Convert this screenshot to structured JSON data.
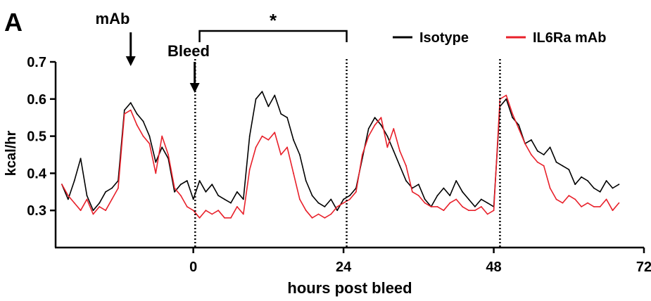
{
  "panel_label": "A",
  "chart_data": {
    "type": "line",
    "xlabel": "hours post bleed",
    "ylabel": "kcal/hr",
    "xlim": [
      -22,
      72
    ],
    "ylim": [
      0.2,
      0.7
    ],
    "x_ticks": [
      0,
      24,
      48,
      72
    ],
    "y_ticks": [
      0.3,
      0.4,
      0.5,
      0.6,
      0.7
    ],
    "grid": false,
    "legend_position": "top-right",
    "colors": {
      "Isotype": "#000000",
      "IL6Ra mAb": "#e8202a"
    },
    "annotations": {
      "mab_label": "mAb",
      "mab_arrow_x": -10,
      "bleed_label": "Bleed",
      "bleed_arrow_x": 0,
      "significance_label": "*",
      "significance_range": [
        1,
        24.5
      ],
      "dotted_vlines_x": [
        0.3,
        24.5,
        49
      ]
    },
    "x": [
      -21,
      -20,
      -19,
      -18,
      -17,
      -16,
      -15,
      -14,
      -13,
      -12,
      -11,
      -10,
      -9,
      -8,
      -7,
      -6,
      -5,
      -4,
      -3,
      -2,
      -1,
      0,
      1,
      2,
      3,
      4,
      5,
      6,
      7,
      8,
      9,
      10,
      11,
      12,
      13,
      14,
      15,
      16,
      17,
      18,
      19,
      20,
      21,
      22,
      23,
      24,
      25,
      26,
      27,
      28,
      29,
      30,
      31,
      32,
      33,
      34,
      35,
      36,
      37,
      38,
      39,
      40,
      41,
      42,
      43,
      44,
      45,
      46,
      47,
      48,
      49,
      50,
      51,
      52,
      53,
      54,
      55,
      56,
      57,
      58,
      59,
      60,
      61,
      62,
      63,
      64,
      65,
      66,
      67,
      68
    ],
    "series": [
      {
        "name": "Isotype",
        "values": [
          0.37,
          0.33,
          0.38,
          0.44,
          0.34,
          0.3,
          0.32,
          0.35,
          0.36,
          0.38,
          0.57,
          0.59,
          0.56,
          0.54,
          0.5,
          0.43,
          0.47,
          0.44,
          0.35,
          0.37,
          0.38,
          0.33,
          0.38,
          0.35,
          0.37,
          0.34,
          0.33,
          0.32,
          0.35,
          0.33,
          0.5,
          0.6,
          0.62,
          0.58,
          0.61,
          0.56,
          0.55,
          0.49,
          0.45,
          0.38,
          0.34,
          0.32,
          0.31,
          0.33,
          0.3,
          0.33,
          0.34,
          0.36,
          0.44,
          0.52,
          0.55,
          0.53,
          0.5,
          0.46,
          0.42,
          0.38,
          0.36,
          0.37,
          0.33,
          0.31,
          0.34,
          0.36,
          0.34,
          0.38,
          0.35,
          0.33,
          0.31,
          0.33,
          0.32,
          0.31,
          0.58,
          0.6,
          0.55,
          0.53,
          0.48,
          0.49,
          0.46,
          0.45,
          0.47,
          0.43,
          0.42,
          0.41,
          0.37,
          0.39,
          0.38,
          0.36,
          0.35,
          0.38,
          0.36,
          0.37
        ]
      },
      {
        "name": "IL6Ra mAb",
        "values": [
          0.37,
          0.34,
          0.32,
          0.3,
          0.33,
          0.29,
          0.31,
          0.3,
          0.33,
          0.36,
          0.56,
          0.57,
          0.53,
          0.5,
          0.48,
          0.4,
          0.5,
          0.45,
          0.36,
          0.34,
          0.31,
          0.3,
          0.28,
          0.3,
          0.29,
          0.3,
          0.28,
          0.28,
          0.31,
          0.29,
          0.41,
          0.47,
          0.5,
          0.49,
          0.51,
          0.45,
          0.47,
          0.4,
          0.33,
          0.3,
          0.28,
          0.29,
          0.28,
          0.29,
          0.31,
          0.32,
          0.33,
          0.35,
          0.45,
          0.5,
          0.53,
          0.55,
          0.47,
          0.52,
          0.46,
          0.42,
          0.35,
          0.34,
          0.32,
          0.31,
          0.31,
          0.3,
          0.32,
          0.33,
          0.31,
          0.3,
          0.3,
          0.31,
          0.29,
          0.3,
          0.6,
          0.61,
          0.56,
          0.52,
          0.48,
          0.45,
          0.43,
          0.42,
          0.36,
          0.33,
          0.32,
          0.34,
          0.33,
          0.31,
          0.32,
          0.31,
          0.31,
          0.33,
          0.3,
          0.32
        ]
      }
    ]
  }
}
